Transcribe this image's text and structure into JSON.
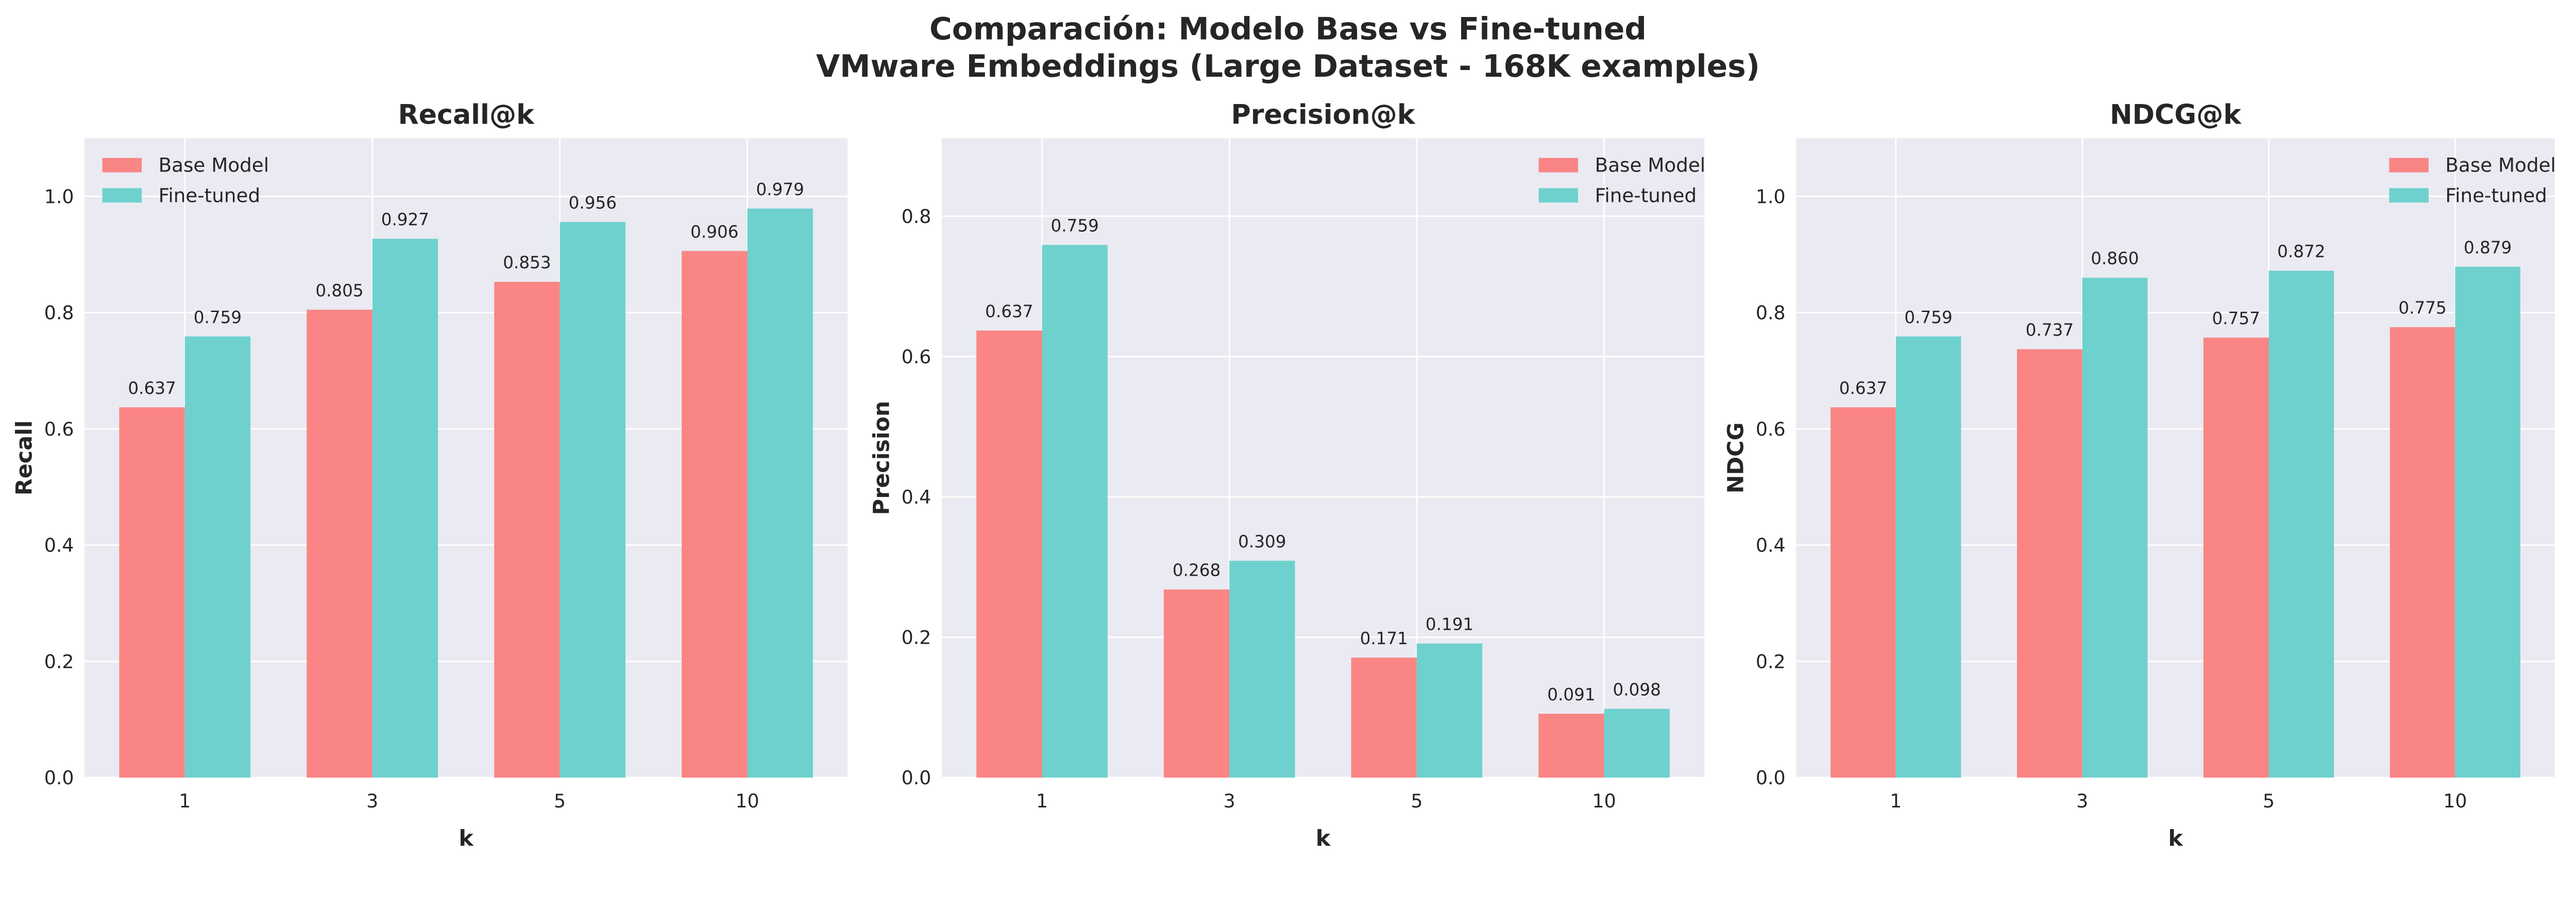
{
  "title_line1": "Comparación: Modelo Base vs Fine-tuned",
  "title_line2": "VMware Embeddings (Large Dataset - 168K examples)",
  "colors": {
    "base": "#FF6B6B",
    "finetuned": "#4ECDC4",
    "axes_bg": "#EAEAF2",
    "grid": "#FFFFFF"
  },
  "chart_data": [
    {
      "type": "bar",
      "title": "Recall@k",
      "xlabel": "k",
      "ylabel": "Recall",
      "categories": [
        "1",
        "3",
        "5",
        "10"
      ],
      "ylim": [
        0,
        1.1
      ],
      "yticks": [
        "0.0",
        "0.2",
        "0.4",
        "0.6",
        "0.8",
        "1.0"
      ],
      "grid": true,
      "legend": "upper-left",
      "series": [
        {
          "name": "Base Model",
          "values": [
            0.637,
            0.805,
            0.853,
            0.906
          ],
          "labels": [
            "0.637",
            "0.805",
            "0.853",
            "0.906"
          ]
        },
        {
          "name": "Fine-tuned",
          "values": [
            0.759,
            0.927,
            0.956,
            0.979
          ],
          "labels": [
            "0.759",
            "0.927",
            "0.956",
            "0.979"
          ]
        }
      ]
    },
    {
      "type": "bar",
      "title": "Precision@k",
      "xlabel": "k",
      "ylabel": "Precision",
      "categories": [
        "1",
        "3",
        "5",
        "10"
      ],
      "ylim": [
        0,
        0.911
      ],
      "yticks": [
        "0.0",
        "0.2",
        "0.4",
        "0.6",
        "0.8"
      ],
      "grid": true,
      "legend": "upper-right",
      "series": [
        {
          "name": "Base Model",
          "values": [
            0.637,
            0.268,
            0.171,
            0.091
          ],
          "labels": [
            "0.637",
            "0.268",
            "0.171",
            "0.091"
          ]
        },
        {
          "name": "Fine-tuned",
          "values": [
            0.759,
            0.309,
            0.191,
            0.098
          ],
          "labels": [
            "0.759",
            "0.309",
            "0.191",
            "0.098"
          ]
        }
      ]
    },
    {
      "type": "bar",
      "title": "NDCG@k",
      "xlabel": "k",
      "ylabel": "NDCG",
      "categories": [
        "1",
        "3",
        "5",
        "10"
      ],
      "ylim": [
        0,
        1.1
      ],
      "yticks": [
        "0.0",
        "0.2",
        "0.4",
        "0.6",
        "0.8",
        "1.0"
      ],
      "grid": true,
      "legend": "upper-right",
      "series": [
        {
          "name": "Base Model",
          "values": [
            0.637,
            0.737,
            0.757,
            0.775
          ],
          "labels": [
            "0.637",
            "0.737",
            "0.757",
            "0.775"
          ]
        },
        {
          "name": "Fine-tuned",
          "values": [
            0.759,
            0.86,
            0.872,
            0.879
          ],
          "labels": [
            "0.759",
            "0.860",
            "0.872",
            "0.879"
          ]
        }
      ]
    }
  ]
}
